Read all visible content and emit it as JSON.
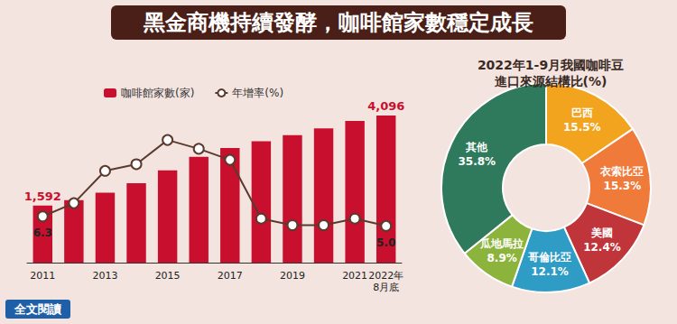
{
  "link_text": "全文閱讀",
  "chart_data": [
    {
      "type": "bar",
      "title": "黑金商機持續發酵，咖啡館家數穩定成長",
      "categories": [
        "2011",
        null,
        "2013",
        null,
        "2015",
        null,
        "2017",
        null,
        "2019",
        null,
        "2021",
        "2022年\n8月底"
      ],
      "series": [
        {
          "name": "咖啡館家數(家)",
          "type": "bar",
          "color": "#c8102e",
          "values": [
            1592,
            1740,
            1950,
            2210,
            2570,
            2950,
            3190,
            3380,
            3550,
            3740,
            3950,
            4096
          ],
          "value_labels": [
            "1,592",
            null,
            null,
            null,
            null,
            null,
            null,
            null,
            null,
            null,
            null,
            "4,096"
          ]
        },
        {
          "name": "年增率(%)",
          "type": "line",
          "axis": "y2",
          "color": "#5b3a2e",
          "marker": "circle",
          "values": [
            6.3,
            8.1,
            12.5,
            13.4,
            16.7,
            15.5,
            14.0,
            6.0,
            5.1,
            5.1,
            6.0,
            5.0
          ],
          "value_labels": [
            "6.3",
            null,
            null,
            null,
            null,
            null,
            null,
            null,
            null,
            null,
            null,
            "5.0"
          ]
        }
      ],
      "ylim": [
        0,
        4500
      ],
      "yticks": [
        0,
        4500
      ],
      "y2lim": [
        0,
        22
      ],
      "y2ticks": [
        0,
        22
      ],
      "grid": false,
      "tick_labels": "x",
      "legend": "top-left"
    },
    {
      "type": "pie",
      "title": "2022年1-9月我國咖啡豆\n進口來源結構比(%)",
      "categories": [
        "巴西",
        "衣索比亞",
        "美國",
        "哥倫比亞",
        "瓜地馬拉",
        "其他"
      ],
      "values": [
        15.5,
        15.3,
        12.4,
        12.1,
        8.9,
        35.8
      ],
      "value_labels": [
        "15.5%",
        "15.3%",
        "12.4%",
        "12.1%",
        "8.9%",
        "35.8%"
      ],
      "colors": [
        "#f3a41f",
        "#f07a3a",
        "#c0353a",
        "#2f9cc6",
        "#8cb43c",
        "#2f7a5c"
      ],
      "data_labels": true
    }
  ]
}
